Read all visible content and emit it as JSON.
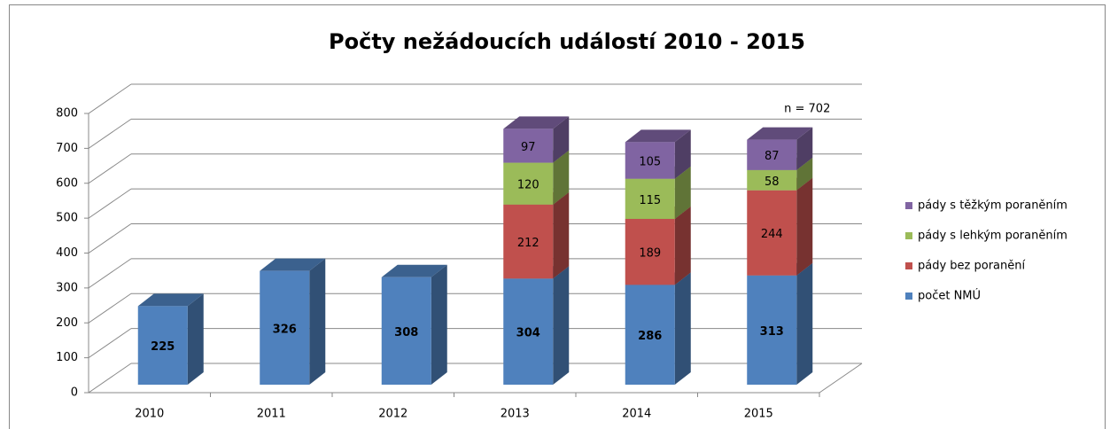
{
  "chart_data": {
    "type": "bar3d_stacked",
    "title": "Počty nežádoucích událostí 2010 - 2015",
    "categories": [
      "2010",
      "2011",
      "2012",
      "2013",
      "2014",
      "2015"
    ],
    "series": [
      {
        "name": "počet NMÚ",
        "color": "#4f81bd",
        "values": [
          225,
          326,
          308,
          304,
          286,
          313
        ]
      },
      {
        "name": "pády bez poranění",
        "color": "#c0504d",
        "values": [
          null,
          null,
          null,
          212,
          189,
          244
        ]
      },
      {
        "name": "pády s lehkým poraněním",
        "color": "#9bbb59",
        "values": [
          null,
          null,
          null,
          120,
          115,
          58
        ]
      },
      {
        "name": "pády s těžkým poraněním",
        "color": "#8064a2",
        "values": [
          null,
          null,
          null,
          97,
          105,
          87
        ]
      }
    ],
    "annotation": "n = 702",
    "ylim": [
      0,
      800
    ],
    "yticks": [
      0,
      100,
      200,
      300,
      400,
      500,
      600,
      700,
      800
    ],
    "grid": true,
    "legend": "right"
  }
}
